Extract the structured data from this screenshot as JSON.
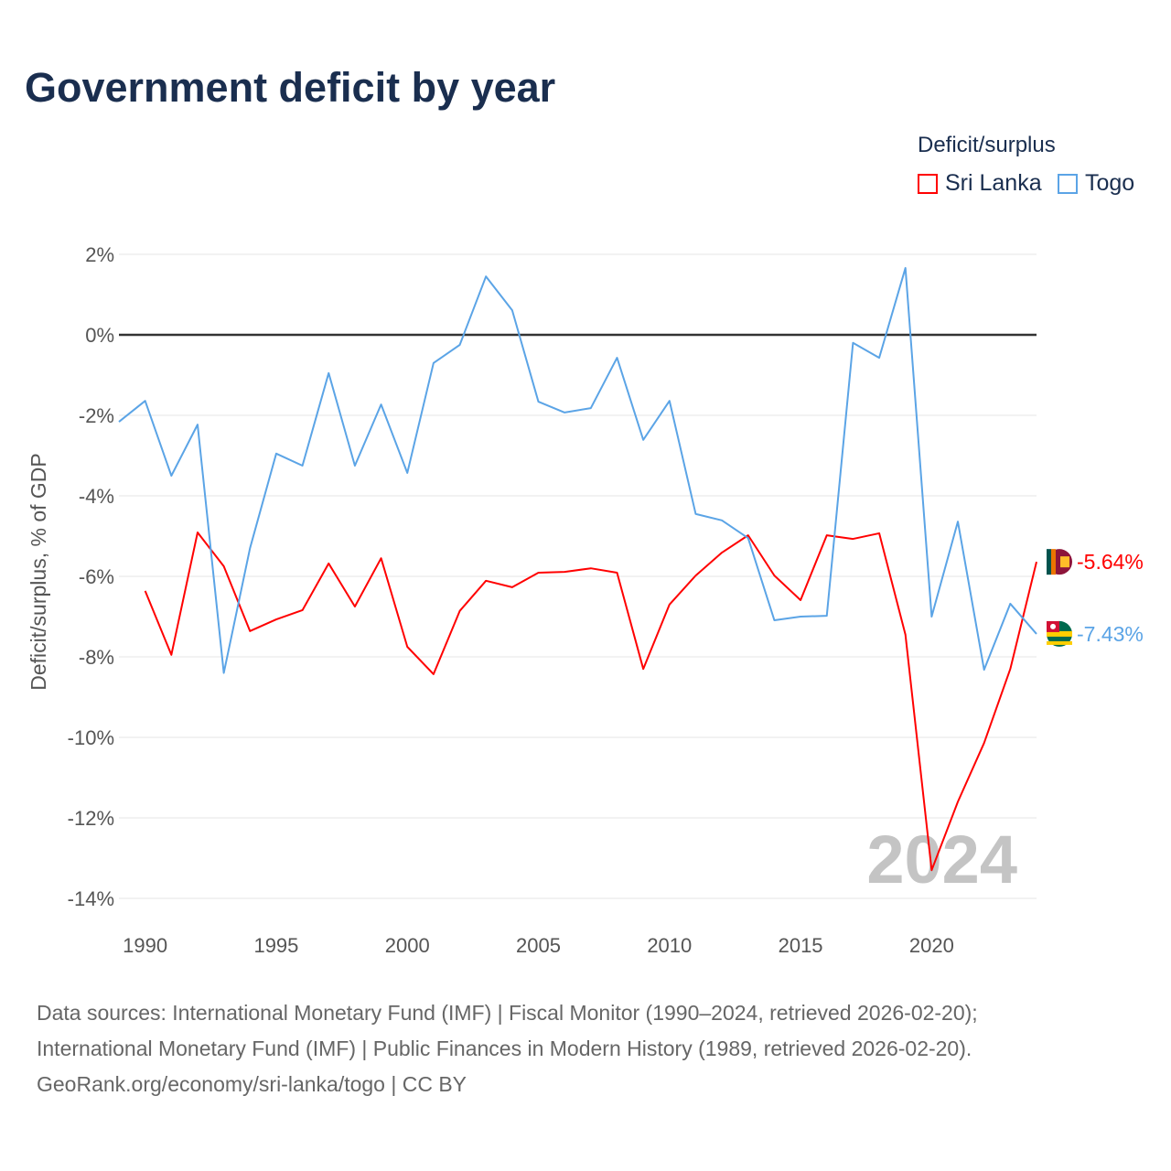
{
  "title": "Government deficit by year",
  "legend": {
    "title": "Deficit/surplus",
    "items": [
      {
        "label": "Sri Lanka",
        "color": "#ff0000"
      },
      {
        "label": "Togo",
        "color": "#5ba4e6"
      }
    ]
  },
  "year_watermark": "2024",
  "footer": [
    "Data sources: International Monetary Fund (IMF) | Fiscal Monitor (1990–2024, retrieved 2026-02-20);",
    "International Monetary Fund (IMF) | Public Finances in Modern History (1989, retrieved 2026-02-20).",
    "GeoRank.org/economy/sri-lanka/togo | CC BY"
  ],
  "chart_data": {
    "type": "line",
    "title": "Government deficit by year",
    "xlabel": "",
    "ylabel": "Deficit/surplus, % of GDP",
    "xlim": [
      1989,
      2024
    ],
    "ylim": [
      -14.7,
      2.5
    ],
    "x_ticks": [
      1990,
      1995,
      2000,
      2005,
      2010,
      2015,
      2020
    ],
    "y_ticks": [
      2,
      0,
      -2,
      -4,
      -6,
      -8,
      -10,
      -12,
      -14
    ],
    "y_tick_labels": [
      "2%",
      "0%",
      "-2%",
      "-4%",
      "-6%",
      "-8%",
      "-10%",
      "-12%",
      "-14%"
    ],
    "grid": true,
    "series": [
      {
        "name": "Sri Lanka",
        "color": "#ff0000",
        "end_label": "-5.64%",
        "x": [
          1990,
          1991,
          1992,
          1993,
          1994,
          1995,
          1996,
          1997,
          1998,
          1999,
          2000,
          2001,
          2002,
          2003,
          2004,
          2005,
          2006,
          2007,
          2008,
          2009,
          2010,
          2011,
          2012,
          2013,
          2014,
          2015,
          2016,
          2017,
          2018,
          2019,
          2020,
          2021,
          2022,
          2023,
          2024
        ],
        "values": [
          -6.36,
          -7.95,
          -4.91,
          -5.75,
          -7.36,
          -7.07,
          -6.84,
          -5.68,
          -6.75,
          -5.55,
          -7.75,
          -8.43,
          -6.86,
          -6.11,
          -6.27,
          -5.91,
          -5.89,
          -5.8,
          -5.91,
          -8.3,
          -6.7,
          -5.98,
          -5.41,
          -4.98,
          -5.98,
          -6.59,
          -4.98,
          -5.07,
          -4.93,
          -7.45,
          -13.3,
          -11.6,
          -10.14,
          -8.3,
          -5.64
        ]
      },
      {
        "name": "Togo",
        "color": "#5ba4e6",
        "end_label": "-7.43%",
        "x": [
          1989,
          1990,
          1991,
          1992,
          1993,
          1994,
          1995,
          1996,
          1997,
          1998,
          1999,
          2000,
          2001,
          2002,
          2003,
          2004,
          2005,
          2006,
          2007,
          2008,
          2009,
          2010,
          2011,
          2012,
          2013,
          2014,
          2015,
          2016,
          2017,
          2018,
          2019,
          2020,
          2021,
          2022,
          2023,
          2024
        ],
        "values": [
          -2.16,
          -1.64,
          -3.5,
          -2.23,
          -8.4,
          -5.3,
          -2.95,
          -3.25,
          -0.95,
          -3.25,
          -1.73,
          -3.43,
          -0.7,
          -0.25,
          1.45,
          0.61,
          -1.66,
          -1.93,
          -1.82,
          -0.57,
          -2.61,
          -1.64,
          -4.45,
          -4.61,
          -5.05,
          -7.09,
          -7.0,
          -6.98,
          -0.2,
          -0.57,
          1.66,
          -7.0,
          -4.64,
          -8.32,
          -6.68,
          -7.43
        ]
      }
    ]
  }
}
